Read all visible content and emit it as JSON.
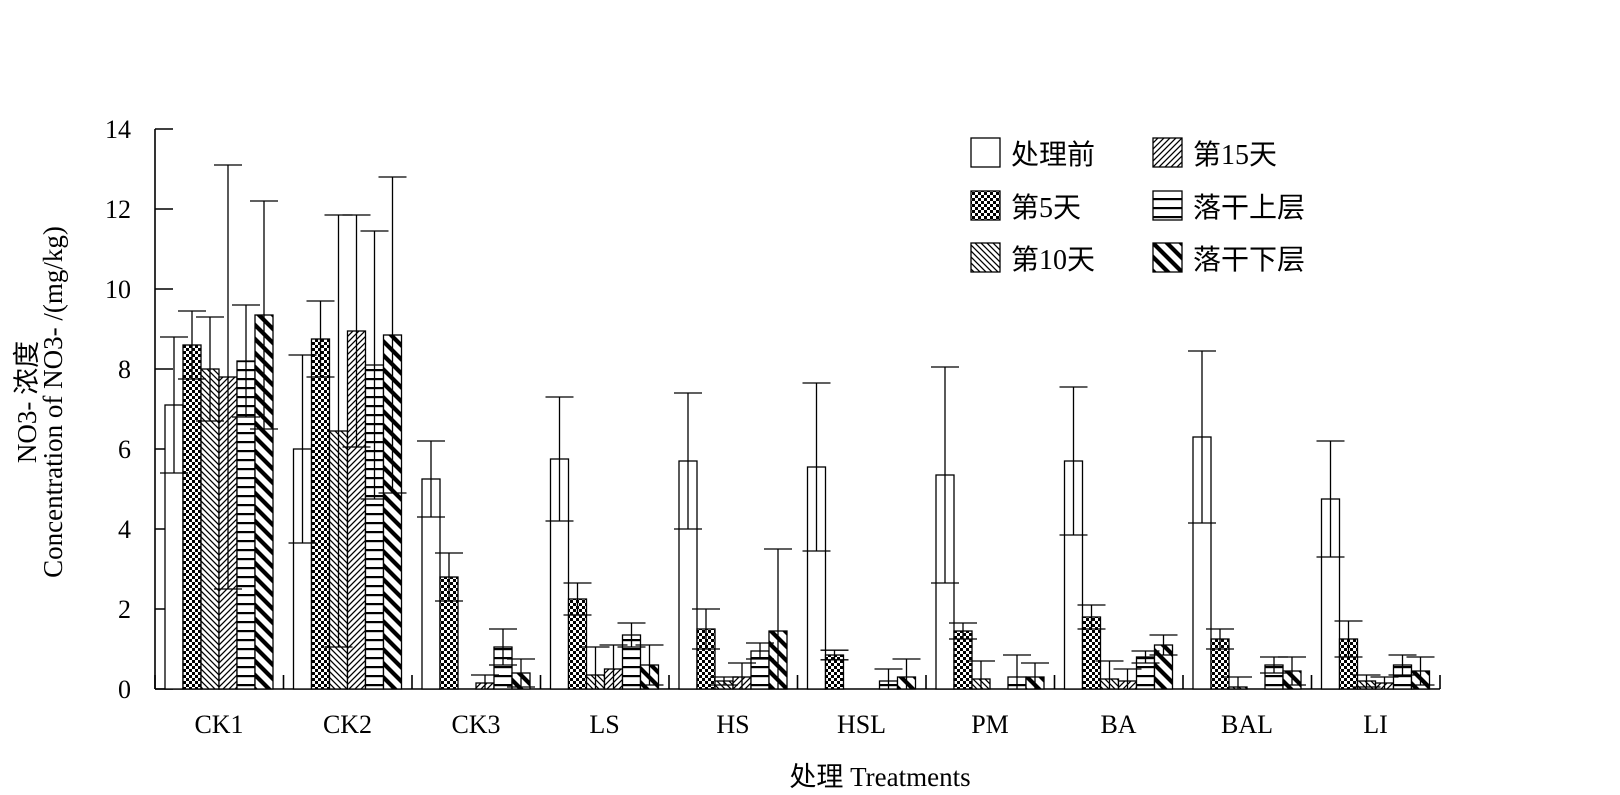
{
  "chart_data": {
    "type": "bar",
    "title": "",
    "xlabel": "处理 Treatments",
    "ylabel_line1": "NO3- 浓度",
    "ylabel_line2": "Concentration of NO3- /(mg/kg)",
    "ylim": [
      0,
      14
    ],
    "yticks": [
      "0",
      "2",
      "4",
      "6",
      "8",
      "10",
      "12",
      "14"
    ],
    "grid": false,
    "legend_position": "top-right",
    "categories": [
      "CK1",
      "CK2",
      "CK3",
      "LS",
      "HS",
      "HSL",
      "PM",
      "BA",
      "BAL",
      "LI"
    ],
    "series": [
      {
        "name": "处理前",
        "pattern": "blank",
        "values": [
          7.1,
          6.0,
          5.25,
          5.75,
          5.7,
          5.55,
          5.35,
          5.7,
          6.3,
          4.75
        ],
        "errors": [
          1.7,
          2.35,
          0.95,
          1.55,
          1.7,
          2.1,
          2.7,
          1.85,
          2.15,
          1.45
        ]
      },
      {
        "name": "第5天",
        "pattern": "checker",
        "values": [
          8.6,
          8.75,
          2.8,
          2.25,
          1.5,
          0.85,
          1.45,
          1.8,
          1.25,
          1.25
        ],
        "errors": [
          0.85,
          0.95,
          0.6,
          0.4,
          0.5,
          0.12,
          0.2,
          0.3,
          0.25,
          0.45
        ]
      },
      {
        "name": "第10天",
        "pattern": "diag-back",
        "values": [
          8.0,
          6.45,
          0.0,
          0.35,
          0.2,
          0.0,
          0.25,
          0.25,
          0.05,
          0.2
        ],
        "errors": [
          1.3,
          5.4,
          0.0,
          0.7,
          0.1,
          0.0,
          0.45,
          0.45,
          0.25,
          0.15
        ]
      },
      {
        "name": "第15天",
        "pattern": "diag-fwd",
        "values": [
          7.8,
          8.95,
          0.15,
          0.5,
          0.3,
          0.0,
          0.0,
          0.2,
          0.0,
          0.15
        ],
        "errors": [
          5.3,
          2.9,
          0.2,
          0.6,
          0.35,
          0.0,
          0.0,
          0.3,
          0.0,
          0.15
        ]
      },
      {
        "name": "落干上层",
        "pattern": "hlines",
        "values": [
          8.2,
          8.1,
          1.05,
          1.35,
          0.95,
          0.2,
          0.3,
          0.8,
          0.6,
          0.6
        ],
        "errors": [
          1.4,
          3.35,
          0.45,
          0.3,
          0.2,
          0.3,
          0.55,
          0.15,
          0.2,
          0.25
        ]
      },
      {
        "name": "落干下层",
        "pattern": "thick-diag",
        "values": [
          9.35,
          8.85,
          0.4,
          0.6,
          1.45,
          0.3,
          0.3,
          1.1,
          0.45,
          0.45
        ],
        "errors": [
          2.85,
          3.95,
          0.35,
          0.5,
          2.05,
          0.45,
          0.35,
          0.25,
          0.35,
          0.35
        ]
      }
    ]
  }
}
